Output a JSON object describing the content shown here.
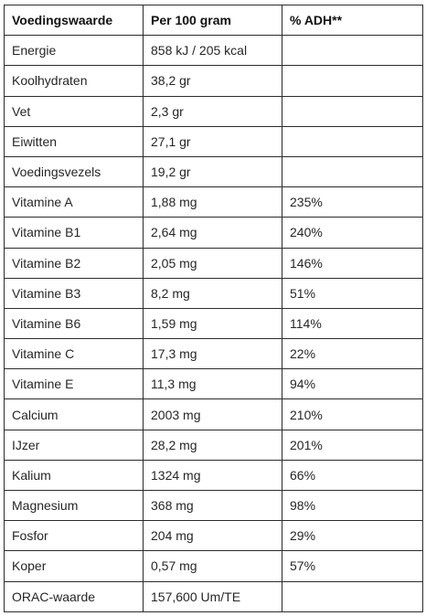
{
  "table": {
    "headers": [
      "Voedingswaarde",
      "Per 100 gram",
      "% ADH**"
    ],
    "rows": [
      [
        "Energie",
        "858 kJ / 205 kcal",
        ""
      ],
      [
        "Koolhydraten",
        "38,2 gr",
        ""
      ],
      [
        "Vet",
        "2,3 gr",
        ""
      ],
      [
        "Eiwitten",
        "27,1 gr",
        ""
      ],
      [
        "Voedingsvezels",
        "19,2 gr",
        ""
      ],
      [
        "Vitamine A",
        "1,88 mg",
        "235%"
      ],
      [
        "Vitamine B1",
        "2,64 mg",
        "240%"
      ],
      [
        "Vitamine B2",
        "2,05 mg",
        "146%"
      ],
      [
        "Vitamine B3",
        "8,2 mg",
        "51%"
      ],
      [
        "Vitamine B6",
        "1,59 mg",
        "114%"
      ],
      [
        "Vitamine C",
        "17,3 mg",
        "22%"
      ],
      [
        "Vitamine E",
        "11,3 mg",
        "94%"
      ],
      [
        "Calcium",
        "2003 mg",
        "210%"
      ],
      [
        "IJzer",
        "28,2 mg",
        "201%"
      ],
      [
        "Kalium",
        "1324 mg",
        "66%"
      ],
      [
        "Magnesium",
        "368 mg",
        "98%"
      ],
      [
        "Fosfor",
        "204 mg",
        "29%"
      ],
      [
        "Koper",
        "0,57 mg",
        "57%"
      ],
      [
        "ORAC-waarde",
        "157,600 Um/TE",
        ""
      ]
    ]
  }
}
